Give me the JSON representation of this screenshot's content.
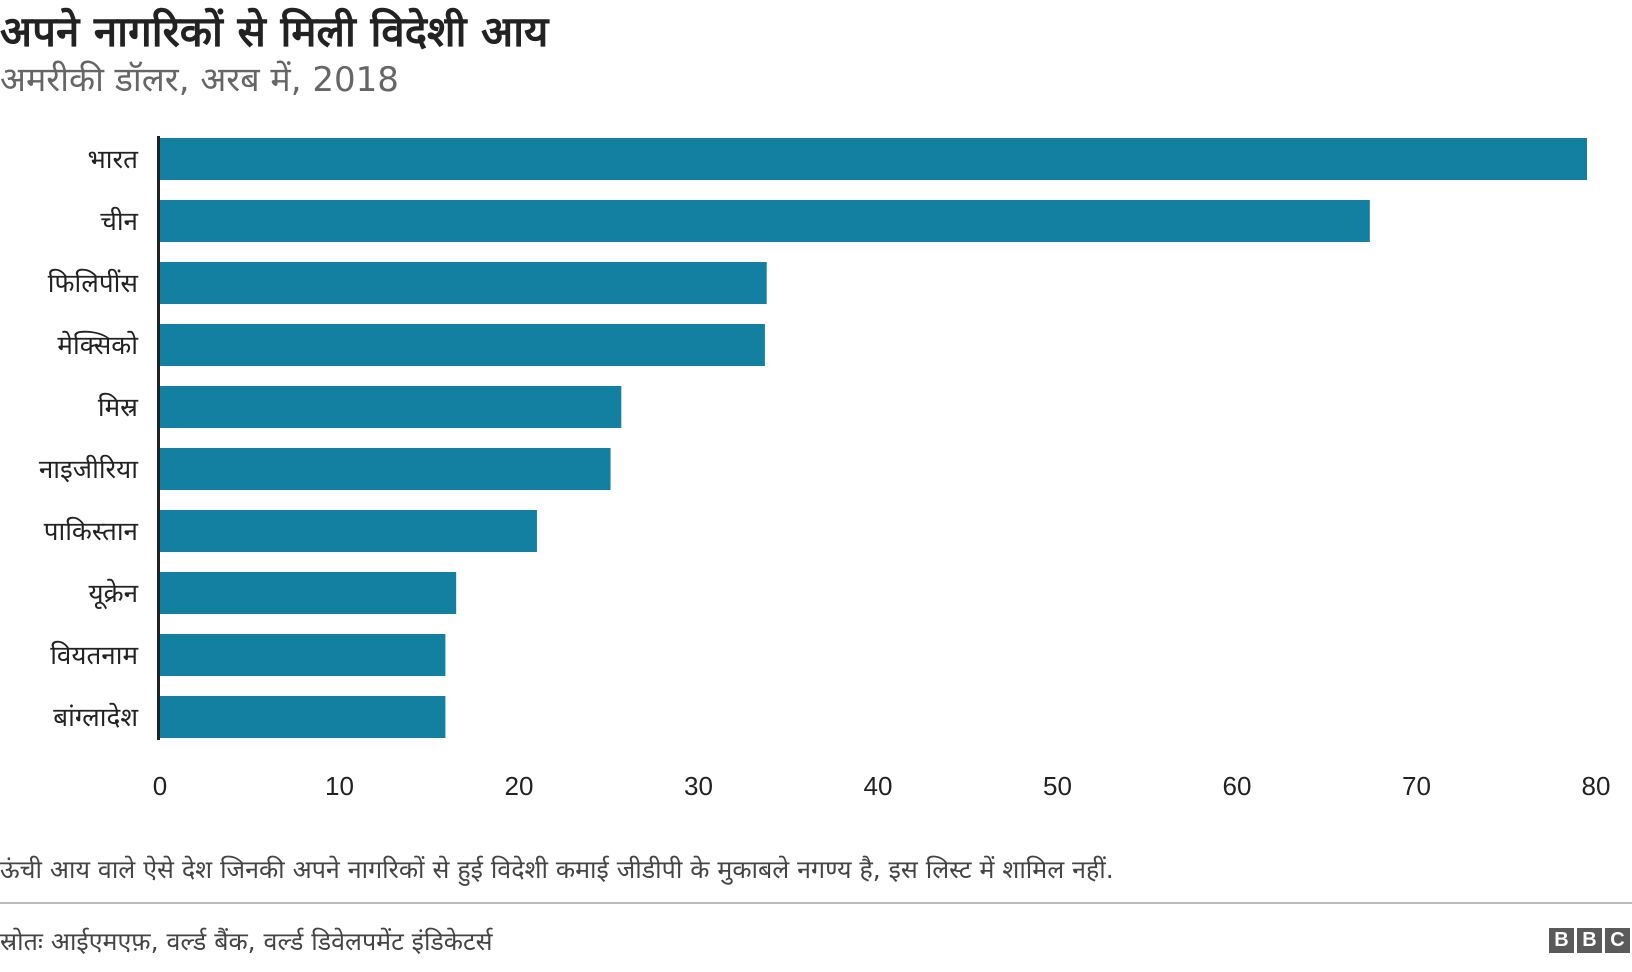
{
  "header": {
    "title": "अपने नागरिकों से मिली विदेशी आय",
    "subtitle": "अमरीकी डॉलर, अरब में, 2018"
  },
  "chart_data": {
    "type": "bar",
    "orientation": "horizontal",
    "categories": [
      "भारत",
      "चीन",
      "फिलिपींस",
      "मेक्सिको",
      "मिस्र",
      "नाइजीरिया",
      "पाकिस्तान",
      "यूक्रेन",
      "वियतनाम",
      "बांग्लादेश"
    ],
    "values": [
      79.5,
      67.4,
      33.8,
      33.7,
      25.7,
      25.1,
      21.0,
      16.5,
      15.9,
      15.9
    ],
    "xlim": [
      0,
      80
    ],
    "xticks": [
      0,
      10,
      20,
      30,
      40,
      50,
      60,
      70,
      80
    ],
    "xlabel": "",
    "ylabel": "",
    "grid": false,
    "bar_color": "#1380a1"
  },
  "footer": {
    "note": "ऊंची आय वाले ऐसे देश जिनकी अपने नागरिकों से हुई विदेशी कमाई जीडीपी के मुकाबले नगण्य है, इस लिस्ट में शामिल नहीं.",
    "source": "स्रोतः आईएमएफ़, वर्ल्ड बैंक, वर्ल्ड डिवेलपमेंट इंडिकेटर्स",
    "logo": [
      "B",
      "B",
      "C"
    ]
  }
}
